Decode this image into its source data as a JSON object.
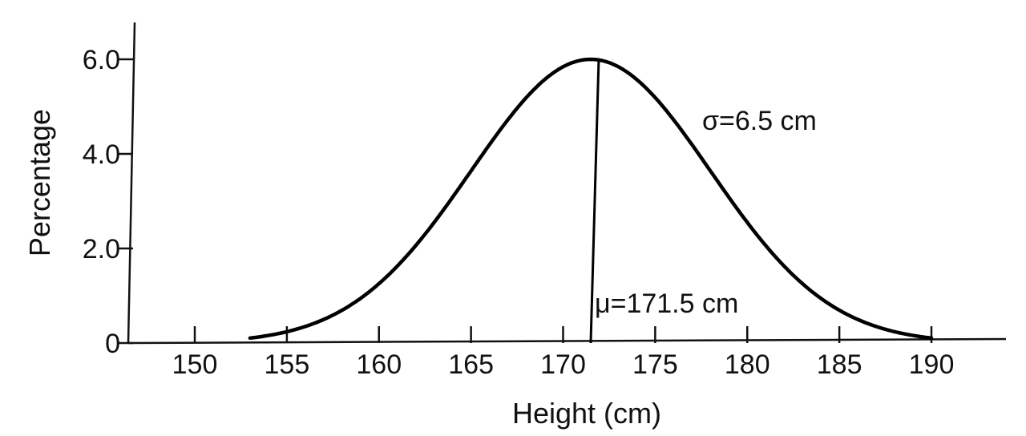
{
  "chart_data": {
    "type": "line",
    "title": "",
    "xlabel": "Height (cm)",
    "ylabel": "Percentage",
    "xlim": [
      148,
      194
    ],
    "ylim": [
      0,
      6.8
    ],
    "x_ticks": [
      150,
      155,
      160,
      165,
      170,
      175,
      180,
      185,
      190
    ],
    "x_tick_labels": [
      "150",
      "155",
      "160",
      "165",
      "170",
      "175",
      "180",
      "185",
      "190"
    ],
    "y_ticks": [
      0,
      2.0,
      4.0,
      6.0
    ],
    "y_tick_labels": [
      "0",
      "2.0",
      "4.0",
      "6.0"
    ],
    "grid": false,
    "series": [
      {
        "distribution": "normal",
        "mean": 171.5,
        "sd": 6.5,
        "peak": 6.0,
        "x_range": [
          153,
          190
        ]
      }
    ],
    "annotations": {
      "sigma_label": "σ=6.5 cm",
      "mu_label": "μ=171.5 cm"
    }
  }
}
